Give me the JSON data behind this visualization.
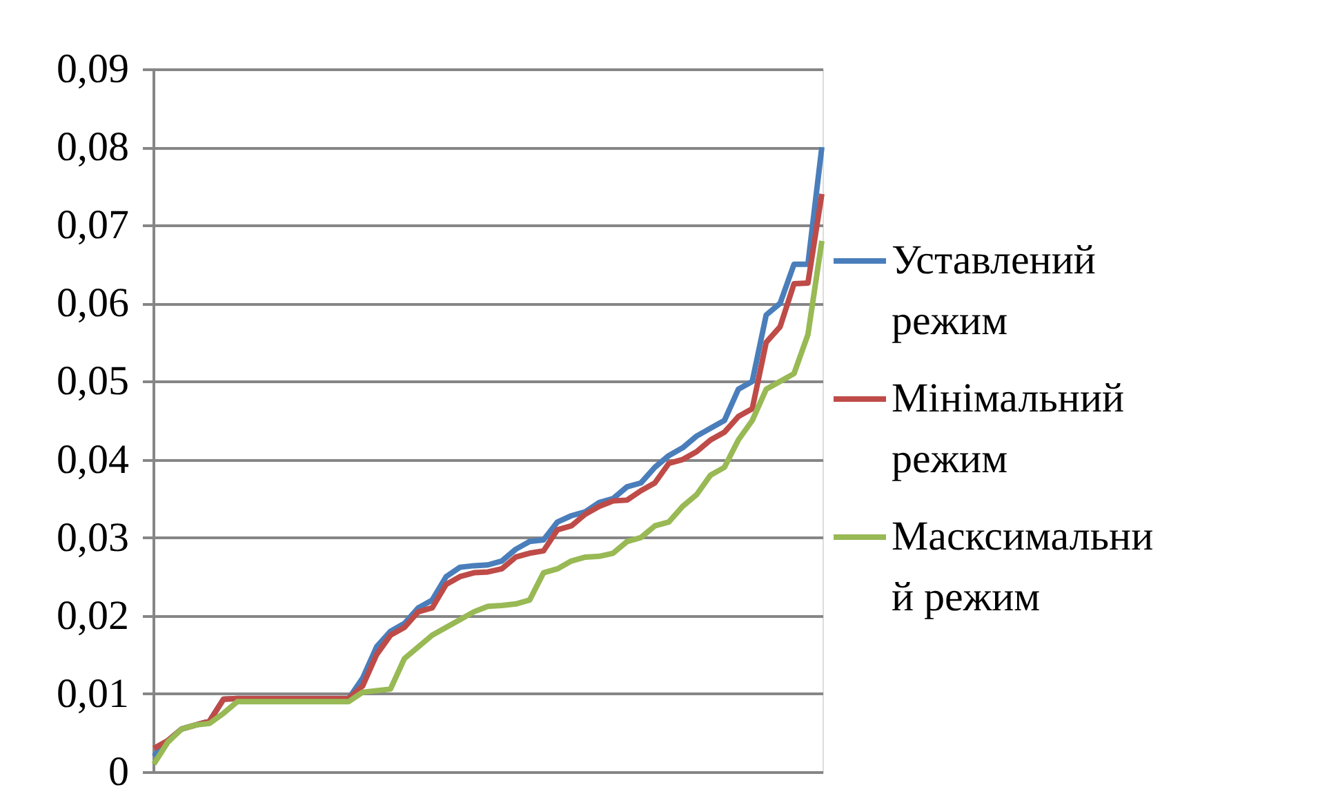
{
  "chart_data": {
    "type": "line",
    "categories": [
      null,
      null,
      null,
      null,
      null,
      null,
      null,
      null,
      null,
      null,
      null,
      null,
      null,
      null,
      null,
      null,
      null,
      null,
      null,
      null,
      null,
      null,
      null,
      null,
      null,
      null,
      null,
      null,
      null,
      null,
      null,
      null,
      null,
      null,
      null,
      null,
      null,
      null,
      null,
      null,
      null,
      null,
      null,
      null,
      null,
      null,
      null,
      null,
      null
    ],
    "series": [
      {
        "name": "Уставлений режим",
        "color": "#4a7ebb",
        "values": [
          0.002,
          0.004,
          0.0055,
          0.006,
          0.0065,
          0.0093,
          0.0094,
          0.0094,
          0.0094,
          0.0094,
          0.0094,
          0.0094,
          0.0094,
          0.0094,
          0.0094,
          0.012,
          0.016,
          0.018,
          0.019,
          0.021,
          0.022,
          0.025,
          0.0262,
          0.0264,
          0.0265,
          0.027,
          0.0285,
          0.0295,
          0.0297,
          0.032,
          0.0328,
          0.0333,
          0.0345,
          0.035,
          0.0365,
          0.037,
          0.039,
          0.0405,
          0.0415,
          0.043,
          0.044,
          0.045,
          0.049,
          0.05,
          0.0585,
          0.06,
          0.065,
          0.065,
          0.08
        ]
      },
      {
        "name": "Мінімальний режим",
        "color": "#be4b48",
        "values": [
          0.003,
          0.004,
          0.0055,
          0.006,
          0.0065,
          0.0093,
          0.0094,
          0.0094,
          0.0094,
          0.0094,
          0.0094,
          0.0094,
          0.0094,
          0.0094,
          0.0094,
          0.011,
          0.015,
          0.0175,
          0.0185,
          0.0205,
          0.021,
          0.024,
          0.025,
          0.0255,
          0.0256,
          0.026,
          0.0275,
          0.028,
          0.0283,
          0.031,
          0.0315,
          0.033,
          0.034,
          0.0347,
          0.0348,
          0.036,
          0.037,
          0.0395,
          0.04,
          0.041,
          0.0425,
          0.0435,
          0.0455,
          0.0465,
          0.055,
          0.057,
          0.0625,
          0.0626,
          0.074
        ]
      },
      {
        "name": "Масксимальний режим",
        "color": "#98b954",
        "values": [
          0.001,
          0.0038,
          0.0055,
          0.006,
          0.0062,
          0.0075,
          0.009,
          0.009,
          0.009,
          0.009,
          0.009,
          0.009,
          0.009,
          0.009,
          0.009,
          0.0102,
          0.0104,
          0.0106,
          0.0145,
          0.016,
          0.0175,
          0.0185,
          0.0195,
          0.0205,
          0.0212,
          0.0213,
          0.0215,
          0.022,
          0.0255,
          0.026,
          0.027,
          0.0275,
          0.0276,
          0.028,
          0.0295,
          0.03,
          0.0315,
          0.032,
          0.034,
          0.0355,
          0.038,
          0.039,
          0.0425,
          0.045,
          0.049,
          0.05,
          0.051,
          0.056,
          0.068
        ]
      }
    ],
    "ylim": [
      0,
      0.09
    ],
    "yticks": [
      {
        "value": 0,
        "label": "0"
      },
      {
        "value": 0.01,
        "label": "0,01"
      },
      {
        "value": 0.02,
        "label": "0,02"
      },
      {
        "value": 0.03,
        "label": "0,03"
      },
      {
        "value": 0.04,
        "label": "0,04"
      },
      {
        "value": 0.05,
        "label": "0,05"
      },
      {
        "value": 0.06,
        "label": "0,06"
      },
      {
        "value": 0.07,
        "label": "0,07"
      },
      {
        "value": 0.08,
        "label": "0,08"
      },
      {
        "value": 0.09,
        "label": "0,09"
      }
    ],
    "grid": "y",
    "legend": "right",
    "tick_labels": "y",
    "marker": "none",
    "line_style": "solid"
  }
}
